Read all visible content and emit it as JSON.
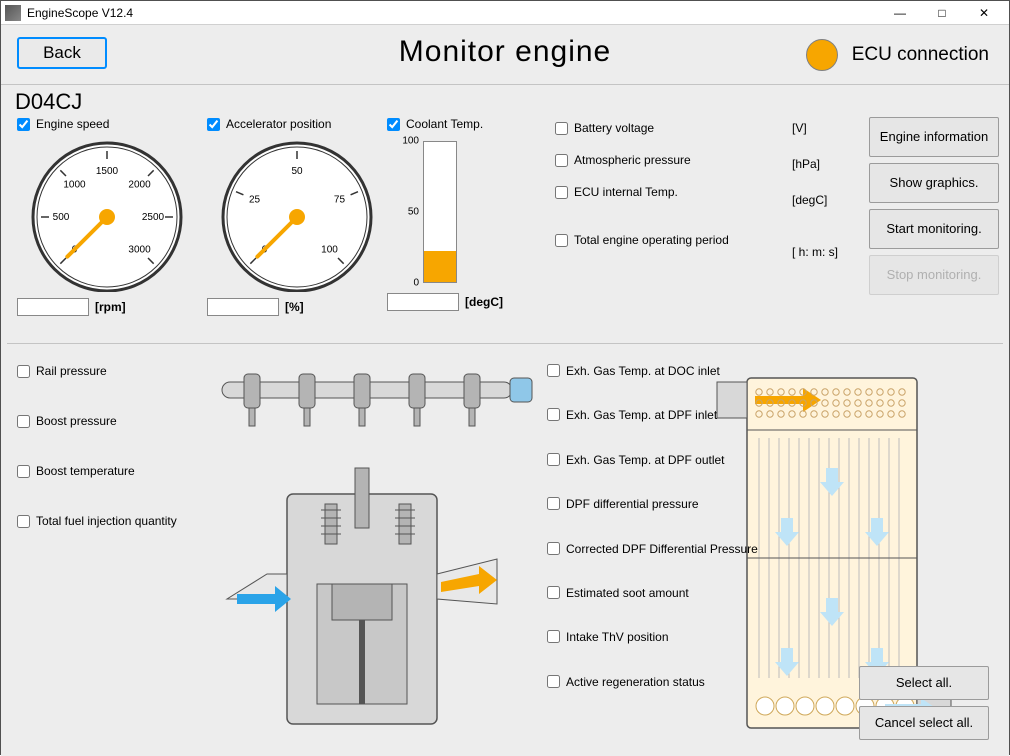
{
  "window": {
    "title": "EngineScope V12.4"
  },
  "header": {
    "back": "Back",
    "title": "Monitor engine",
    "ecu_label": "ECU connection",
    "ecu_color": "#f7a600"
  },
  "engine_id": "D04CJ",
  "accent": "#f7a600",
  "gauges": {
    "rpm": {
      "label": "Engine speed",
      "checked": true,
      "unit": "[rpm]",
      "min": 0,
      "max": 3000,
      "ticks": [
        0,
        500,
        1000,
        1500,
        2000,
        2500,
        3000
      ],
      "start_angle": 225,
      "end_angle": -45,
      "value": 0
    },
    "accel": {
      "label": "Accelerator position",
      "checked": true,
      "unit": "[%]",
      "min": 0,
      "max": 100,
      "ticks": [
        0,
        25,
        50,
        75,
        100
      ],
      "start_angle": 225,
      "end_angle": -45,
      "value": 0
    },
    "coolant": {
      "label": "Coolant Temp.",
      "checked": true,
      "unit": "[degC]",
      "min": 0,
      "max": 100,
      "ticks": [
        0,
        50,
        100
      ],
      "value": 22
    }
  },
  "params_right": [
    {
      "label": "Battery voltage",
      "unit": "[V]"
    },
    {
      "label": "Atmospheric pressure",
      "unit": "[hPa]"
    },
    {
      "label": "ECU internal Temp.",
      "unit": "[degC]"
    },
    {
      "label": "Total engine operating period",
      "unit": "[ h: m: s]"
    }
  ],
  "buttons": {
    "engine_info": "Engine information",
    "show_graphics": "Show graphics.",
    "start_mon": "Start monitoring.",
    "stop_mon": "Stop monitoring."
  },
  "left_params": [
    "Rail pressure",
    "Boost pressure",
    "Boost temperature",
    "Total fuel injection quantity"
  ],
  "mid_params": [
    "Exh. Gas Temp. at DOC inlet",
    "Exh. Gas Temp. at DPF inlet",
    "Exh. Gas Temp. at DPF outlet",
    "DPF differential pressure",
    "Corrected DPF Differential Pressure",
    "Estimated soot amount",
    "Intake ThV position",
    "Active regeneration status"
  ],
  "select_all": "Select all.",
  "cancel_select": "Cancel select all.",
  "diagram_colors": {
    "metal": "#d8d8d8",
    "metal_dark": "#b4b4b4",
    "outline": "#555",
    "arrow_in": "#2aa3e8",
    "arrow_out": "#f7a600",
    "dpf_body": "#fff4dc"
  }
}
